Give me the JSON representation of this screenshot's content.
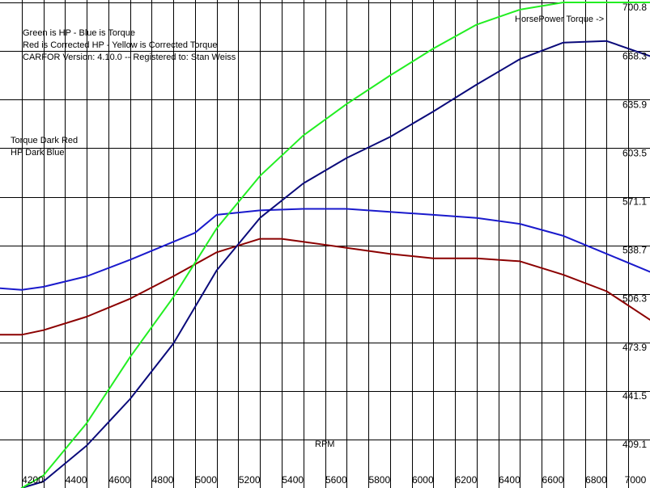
{
  "chart_data": {
    "type": "line",
    "legend_lines": [
      "Green is HP - Blue is Torque",
      "Red is Corrected HP - Yellow is Corrected Torque",
      "CARFOR Version: 4.10.0 -- Registered to:   Stan Weiss"
    ],
    "side_legend": [
      "Torque   Dark Red",
      "HP    Dark Blue"
    ],
    "header_label": "HorsePower Torque ->",
    "xlabel": "RPM",
    "x_ticks": [
      4200,
      4400,
      4600,
      4800,
      5000,
      5200,
      5400,
      5600,
      5800,
      6000,
      6200,
      6400,
      6600,
      6800,
      7000
    ],
    "y_ticks": [
      "409.1",
      "441.5",
      "473.9",
      "506.3",
      "538.7",
      "571.1",
      "603.5",
      "635.9",
      "668.3",
      "700.8"
    ],
    "xlim": [
      4000,
      7000
    ],
    "ylim": [
      376.7,
      700.8
    ],
    "grid": true,
    "colors": {
      "grid": "#000000",
      "hp": "#22ee22",
      "torque": "#1a1acc",
      "corrected_torque": "#8b0000",
      "hp_dark": "#0a0a7a"
    },
    "series": [
      {
        "name": "Green is HP",
        "color": "#22ee22",
        "x": [
          4100,
          4200,
          4400,
          4600,
          4800,
          5000,
          5200,
          5400,
          5600,
          5800,
          6000,
          6200,
          6400,
          6600,
          6800,
          7000
        ],
        "y": [
          376.7,
          385.0,
          420.0,
          464.0,
          504.0,
          550.0,
          585.0,
          612.0,
          633.0,
          652.0,
          670.0,
          686.0,
          696.0,
          700.8,
          700.8,
          700.8
        ]
      },
      {
        "name": "Blue is Torque",
        "color": "#1a1acc",
        "x": [
          4000,
          4100,
          4200,
          4400,
          4600,
          4800,
          4900,
          5000,
          5200,
          5400,
          5600,
          5800,
          6000,
          6200,
          6400,
          6600,
          6800,
          7000
        ],
        "y": [
          510.0,
          509.0,
          511.0,
          518.0,
          529.0,
          541.0,
          547.0,
          559.0,
          562.0,
          563.0,
          563.0,
          561.0,
          559.0,
          557.0,
          553.0,
          545.0,
          533.0,
          521.0
        ]
      },
      {
        "name": "Torque Dark Red",
        "color": "#8b0000",
        "x": [
          4000,
          4100,
          4200,
          4400,
          4600,
          4800,
          4900,
          5000,
          5200,
          5300,
          5400,
          5600,
          5800,
          6000,
          6200,
          6400,
          6600,
          6800,
          7000
        ],
        "y": [
          479.0,
          479.0,
          482.0,
          491.0,
          503.0,
          518.0,
          526.0,
          534.0,
          543.0,
          543.0,
          541.0,
          537.0,
          533.0,
          530.0,
          530.0,
          528.0,
          519.0,
          508.0,
          489.0
        ]
      },
      {
        "name": "HP Dark Blue",
        "color": "#0a0a7a",
        "x": [
          4100,
          4200,
          4400,
          4600,
          4800,
          5000,
          5200,
          5400,
          5600,
          5800,
          6000,
          6200,
          6400,
          6600,
          6800,
          7000
        ],
        "y": [
          376.7,
          381.0,
          405.0,
          436.0,
          473.0,
          522.0,
          557.0,
          580.0,
          597.0,
          611.0,
          628.0,
          646.0,
          663.0,
          674.0,
          675.0,
          665.0
        ]
      }
    ]
  }
}
